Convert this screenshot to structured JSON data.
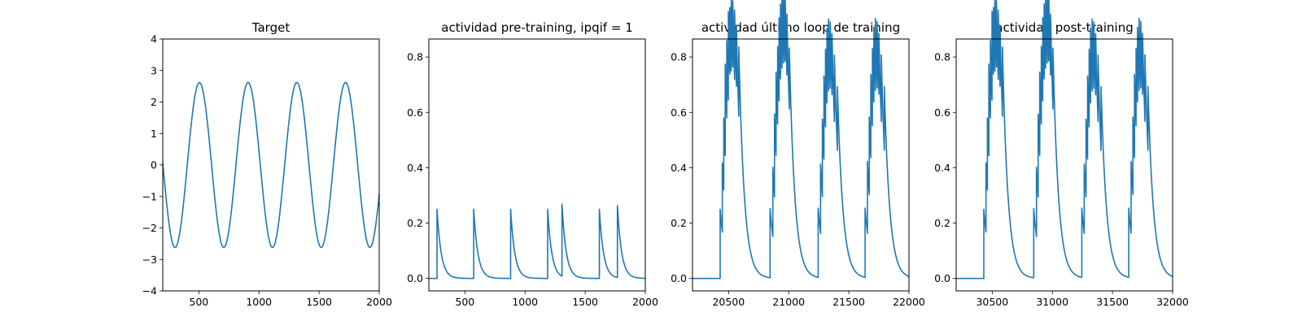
{
  "colors": {
    "series": "#1f77b4",
    "axes": "#000000",
    "background": "#ffffff"
  },
  "chart_data": [
    {
      "type": "line",
      "title": "Target",
      "xlabel": "",
      "ylabel": "",
      "xlim": [
        200,
        2000
      ],
      "ylim": [
        -4,
        4
      ],
      "xticks": [
        500,
        1000,
        1500,
        2000
      ],
      "xtick_labels": [
        "500",
        "1000",
        "1500",
        "2000"
      ],
      "yticks": [
        -4,
        -3,
        -2,
        -1,
        0,
        1,
        2,
        3,
        4
      ],
      "ytick_labels": [
        "−4",
        "−3",
        "−2",
        "−1",
        "0",
        "1",
        "2",
        "3",
        "4"
      ],
      "grid": false,
      "series": [
        {
          "kind": "sine",
          "amplitude": 2.62,
          "period": 405,
          "peak_x": 505,
          "x_start": 200,
          "x_end": 2000
        }
      ]
    },
    {
      "type": "line",
      "title": "actividad pre-training, ipqif = 1",
      "xlabel": "",
      "ylabel": "",
      "xlim": [
        200,
        2000
      ],
      "ylim": [
        -0.045,
        0.865
      ],
      "xticks": [
        500,
        1000,
        1500,
        2000
      ],
      "xtick_labels": [
        "500",
        "1000",
        "1500",
        "2000"
      ],
      "yticks": [
        0.0,
        0.2,
        0.4,
        0.6,
        0.8
      ],
      "ytick_labels": [
        "0.0",
        "0.2",
        "0.4",
        "0.6",
        "0.8"
      ],
      "grid": false,
      "series": [
        {
          "kind": "spikes",
          "x_start": 200,
          "x_end": 2000,
          "tau": 35,
          "spikes": [
            {
              "t": 268,
              "a": 0.25
            },
            {
              "t": 573,
              "a": 0.25
            },
            {
              "t": 880,
              "a": 0.25
            },
            {
              "t": 1188,
              "a": 0.25
            },
            {
              "t": 1307,
              "a": 0.26
            },
            {
              "t": 1618,
              "a": 0.25
            },
            {
              "t": 1768,
              "a": 0.26
            }
          ]
        }
      ]
    },
    {
      "type": "line",
      "title": "actividad último loop de training",
      "xlabel": "",
      "ylabel": "",
      "xlim": [
        20200,
        22000
      ],
      "ylim": [
        -0.045,
        0.865
      ],
      "xticks": [
        20500,
        21000,
        21500,
        22000
      ],
      "xtick_labels": [
        "20500",
        "21000",
        "21500",
        "22000"
      ],
      "yticks": [
        0.0,
        0.2,
        0.4,
        0.6,
        0.8
      ],
      "ytick_labels": [
        "0.0",
        "0.2",
        "0.4",
        "0.6",
        "0.8"
      ],
      "grid": false,
      "series": [
        {
          "kind": "spikes",
          "x_start": 20200,
          "x_end": 22000,
          "tau": 45,
          "spikes": [
            {
              "t": 20430,
              "a": 0.25
            },
            {
              "t": 20448,
              "a": 0.25
            },
            {
              "t": 20460,
              "a": 0.26
            },
            {
              "t": 20472,
              "a": 0.33
            },
            {
              "t": 20485,
              "a": 0.28
            },
            {
              "t": 20498,
              "a": 0.32
            },
            {
              "t": 20510,
              "a": 0.24
            },
            {
              "t": 20522,
              "a": 0.27
            },
            {
              "t": 20535,
              "a": 0.24
            },
            {
              "t": 20550,
              "a": 0.25
            },
            {
              "t": 20565,
              "a": 0.22
            },
            {
              "t": 20585,
              "a": 0.25
            },
            {
              "t": 20845,
              "a": 0.25
            },
            {
              "t": 20868,
              "a": 0.25
            },
            {
              "t": 20882,
              "a": 0.3
            },
            {
              "t": 20895,
              "a": 0.3
            },
            {
              "t": 20908,
              "a": 0.28
            },
            {
              "t": 20920,
              "a": 0.3
            },
            {
              "t": 20932,
              "a": 0.27
            },
            {
              "t": 20944,
              "a": 0.28
            },
            {
              "t": 20957,
              "a": 0.27
            },
            {
              "t": 20970,
              "a": 0.24
            },
            {
              "t": 20985,
              "a": 0.22
            },
            {
              "t": 21005,
              "a": 0.22
            },
            {
              "t": 21245,
              "a": 0.25
            },
            {
              "t": 21265,
              "a": 0.25
            },
            {
              "t": 21280,
              "a": 0.28
            },
            {
              "t": 21293,
              "a": 0.3
            },
            {
              "t": 21306,
              "a": 0.28
            },
            {
              "t": 21318,
              "a": 0.27
            },
            {
              "t": 21331,
              "a": 0.26
            },
            {
              "t": 21345,
              "a": 0.24
            },
            {
              "t": 21360,
              "a": 0.22
            },
            {
              "t": 21380,
              "a": 0.24
            },
            {
              "t": 21405,
              "a": 0.23
            },
            {
              "t": 21635,
              "a": 0.25
            },
            {
              "t": 21655,
              "a": 0.26
            },
            {
              "t": 21670,
              "a": 0.28
            },
            {
              "t": 21683,
              "a": 0.3
            },
            {
              "t": 21696,
              "a": 0.28
            },
            {
              "t": 21708,
              "a": 0.27
            },
            {
              "t": 21721,
              "a": 0.26
            },
            {
              "t": 21735,
              "a": 0.24
            },
            {
              "t": 21750,
              "a": 0.22
            },
            {
              "t": 21770,
              "a": 0.24
            },
            {
              "t": 21795,
              "a": 0.23
            }
          ]
        }
      ]
    },
    {
      "type": "line",
      "title": "actividad post-training",
      "xlabel": "",
      "ylabel": "",
      "xlim": [
        30200,
        32000
      ],
      "ylim": [
        -0.045,
        0.865
      ],
      "xticks": [
        30500,
        31000,
        31500,
        32000
      ],
      "xtick_labels": [
        "30500",
        "31000",
        "31500",
        "32000"
      ],
      "yticks": [
        0.0,
        0.2,
        0.4,
        0.6,
        0.8
      ],
      "ytick_labels": [
        "0.0",
        "0.2",
        "0.4",
        "0.6",
        "0.8"
      ],
      "grid": false,
      "series": [
        {
          "kind": "spikes",
          "x_start": 30200,
          "x_end": 32000,
          "tau": 45,
          "spikes": [
            {
              "t": 30430,
              "a": 0.25
            },
            {
              "t": 30448,
              "a": 0.25
            },
            {
              "t": 30460,
              "a": 0.26
            },
            {
              "t": 30472,
              "a": 0.33
            },
            {
              "t": 30485,
              "a": 0.28
            },
            {
              "t": 30498,
              "a": 0.32
            },
            {
              "t": 30510,
              "a": 0.24
            },
            {
              "t": 30522,
              "a": 0.27
            },
            {
              "t": 30535,
              "a": 0.24
            },
            {
              "t": 30550,
              "a": 0.25
            },
            {
              "t": 30565,
              "a": 0.22
            },
            {
              "t": 30585,
              "a": 0.25
            },
            {
              "t": 30845,
              "a": 0.25
            },
            {
              "t": 30868,
              "a": 0.25
            },
            {
              "t": 30882,
              "a": 0.3
            },
            {
              "t": 30895,
              "a": 0.3
            },
            {
              "t": 30908,
              "a": 0.28
            },
            {
              "t": 30920,
              "a": 0.3
            },
            {
              "t": 30932,
              "a": 0.27
            },
            {
              "t": 30944,
              "a": 0.28
            },
            {
              "t": 30957,
              "a": 0.27
            },
            {
              "t": 30970,
              "a": 0.24
            },
            {
              "t": 30985,
              "a": 0.22
            },
            {
              "t": 31005,
              "a": 0.22
            },
            {
              "t": 31245,
              "a": 0.25
            },
            {
              "t": 31265,
              "a": 0.25
            },
            {
              "t": 31280,
              "a": 0.28
            },
            {
              "t": 31293,
              "a": 0.3
            },
            {
              "t": 31306,
              "a": 0.28
            },
            {
              "t": 31318,
              "a": 0.27
            },
            {
              "t": 31331,
              "a": 0.26
            },
            {
              "t": 31345,
              "a": 0.24
            },
            {
              "t": 31360,
              "a": 0.22
            },
            {
              "t": 31380,
              "a": 0.24
            },
            {
              "t": 31405,
              "a": 0.23
            },
            {
              "t": 31635,
              "a": 0.25
            },
            {
              "t": 31655,
              "a": 0.26
            },
            {
              "t": 31670,
              "a": 0.28
            },
            {
              "t": 31683,
              "a": 0.3
            },
            {
              "t": 31696,
              "a": 0.28
            },
            {
              "t": 31708,
              "a": 0.27
            },
            {
              "t": 31721,
              "a": 0.26
            },
            {
              "t": 31735,
              "a": 0.24
            },
            {
              "t": 31750,
              "a": 0.22
            },
            {
              "t": 31770,
              "a": 0.24
            },
            {
              "t": 31795,
              "a": 0.23
            }
          ]
        }
      ]
    }
  ]
}
